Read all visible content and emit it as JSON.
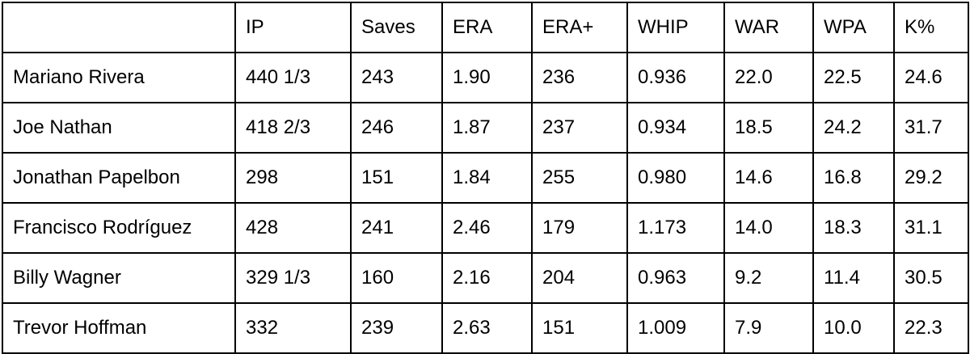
{
  "table": {
    "header": [
      "IP",
      "Saves",
      "ERA",
      "ERA+",
      "WHIP",
      "WAR",
      "WPA",
      "K%"
    ],
    "rows": [
      [
        "Mariano Rivera",
        "440 1/3",
        "243",
        "1.90",
        "236",
        "0.936",
        "22.0",
        "22.5",
        "24.6"
      ],
      [
        "Joe Nathan",
        "418 2/3",
        "246",
        "1.87",
        "237",
        "0.934",
        "18.5",
        "24.2",
        "31.7"
      ],
      [
        "Jonathan Papelbon",
        "298",
        "151",
        "1.84",
        "255",
        "0.980",
        "14.6",
        "16.8",
        "29.2"
      ],
      [
        "Francisco Rodríguez",
        "428",
        "241",
        "2.46",
        "179",
        "1.173",
        "14.0",
        "18.3",
        "31.1"
      ],
      [
        "Billy Wagner",
        "329 1/3",
        "160",
        "2.16",
        "204",
        "0.963",
        "9.2",
        "11.4",
        "30.5"
      ],
      [
        "Trevor Hoffman",
        "332",
        "239",
        "2.63",
        "151",
        "1.009",
        "7.9",
        "10.0",
        "22.3"
      ]
    ]
  }
}
